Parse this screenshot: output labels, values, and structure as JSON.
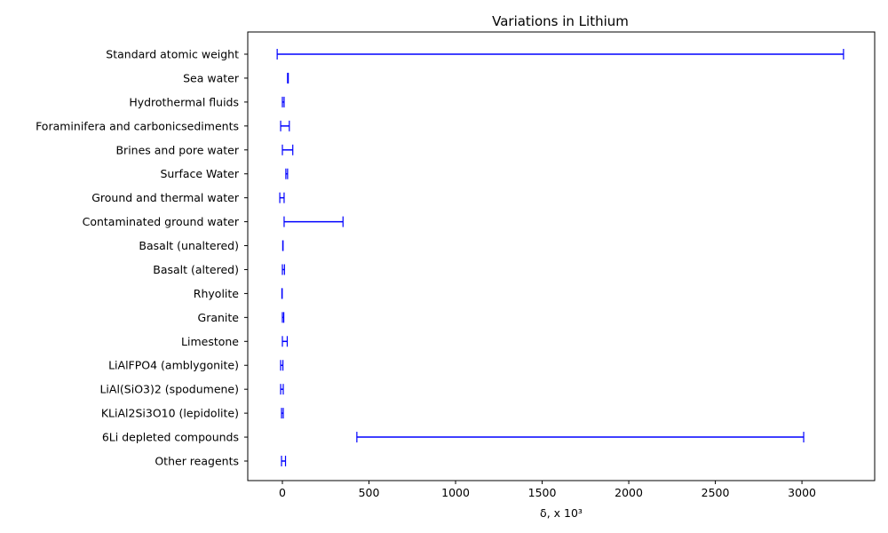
{
  "chart_data": {
    "type": "range",
    "title": "Variations  in Lithium",
    "xlabel": "δ, x 10³",
    "ylabel": "",
    "xlim": [
      -200,
      3420
    ],
    "xticks": [
      0,
      500,
      1000,
      1500,
      2000,
      2500,
      3000
    ],
    "grid": false,
    "color": "#0000ff",
    "categories": [
      "Standard atomic weight",
      "Sea water ",
      "Hydrothermal fluids",
      "Foraminifera and carbonicsediments",
      "Brines and pore water",
      "Surface Water ",
      "Ground and thermal water",
      "Contaminated ground water",
      "Basalt (unaltered)",
      "Basalt (altered)",
      "Rhyolite",
      "Granite",
      "Limestone",
      "LiAlFPO4 (amblygonite)",
      "LiAl(SiO3)2 (spodumene)",
      "KLiAl2Si3O10 (lepidolite)",
      "6Li depleted compounds",
      "Other reagents"
    ],
    "ranges": [
      [
        -30,
        3240
      ],
      [
        30,
        34
      ],
      [
        0,
        10
      ],
      [
        -10,
        40
      ],
      [
        0,
        60
      ],
      [
        20,
        30
      ],
      [
        -15,
        10
      ],
      [
        10,
        350
      ],
      [
        2,
        4
      ],
      [
        0,
        12
      ],
      [
        -3,
        -1
      ],
      [
        0,
        8
      ],
      [
        0,
        28
      ],
      [
        -10,
        3
      ],
      [
        -10,
        5
      ],
      [
        -5,
        5
      ],
      [
        430,
        3010
      ],
      [
        -5,
        18
      ]
    ]
  }
}
